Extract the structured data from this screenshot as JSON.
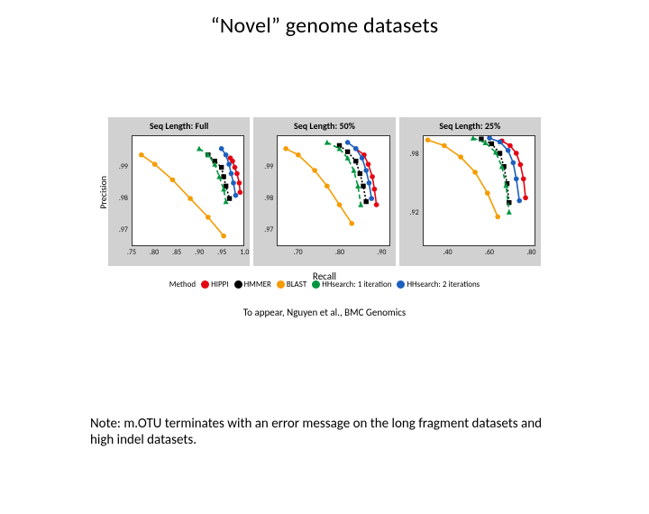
{
  "title": "“Novel” genome datasets",
  "axis": {
    "ylabel": "Precision",
    "xlabel": "Recall"
  },
  "citation": "To appear, Nguyen et al., BMC Genomics",
  "note": "Note: m.OTU terminates with an error message on the long fragment datasets and high indel datasets.",
  "legend_label": "Method",
  "methods": [
    {
      "name": "HIPPI",
      "color": "#e30613",
      "marker": "circle",
      "dash": "none"
    },
    {
      "name": "HMMER",
      "color": "#000000",
      "marker": "square",
      "dash": "2,2"
    },
    {
      "name": "BLAST",
      "color": "#f59c00",
      "marker": "circle",
      "dash": "none"
    },
    {
      "name": "HHsearch: 1 iteration",
      "color": "#009640",
      "marker": "triangle",
      "dash": "5,3"
    },
    {
      "name": "HHsearch: 2 iterations",
      "color": "#1d5fbf",
      "marker": "circle",
      "dash": "none"
    }
  ],
  "panels": [
    {
      "title": "Seq Length: Full",
      "xlim": [
        0.75,
        1.0
      ],
      "xticks": [
        0.75,
        0.8,
        0.85,
        0.9,
        0.95,
        1.0
      ],
      "xtick_labels": [
        ".75",
        ".80",
        ".85",
        ".90",
        ".95",
        "1.0"
      ],
      "ylim": [
        0.965,
        1.0
      ],
      "yticks": [
        0.97,
        0.98,
        0.99
      ],
      "ytick_labels": [
        ".97",
        ".98",
        ".99"
      ],
      "series": {
        "HIPPI": [
          [
            0.97,
            0.993
          ],
          [
            0.975,
            0.992
          ],
          [
            0.98,
            0.99
          ],
          [
            0.985,
            0.988
          ],
          [
            0.99,
            0.985
          ],
          [
            0.992,
            0.982
          ]
        ],
        "HMMER": [
          [
            0.92,
            0.994
          ],
          [
            0.935,
            0.992
          ],
          [
            0.95,
            0.99
          ],
          [
            0.955,
            0.987
          ],
          [
            0.96,
            0.984
          ],
          [
            0.968,
            0.98
          ]
        ],
        "BLAST": [
          [
            0.77,
            0.994
          ],
          [
            0.8,
            0.991
          ],
          [
            0.84,
            0.986
          ],
          [
            0.88,
            0.98
          ],
          [
            0.92,
            0.974
          ],
          [
            0.955,
            0.968
          ]
        ],
        "HHsearch: 1 iteration": [
          [
            0.9,
            0.996
          ],
          [
            0.92,
            0.994
          ],
          [
            0.935,
            0.991
          ],
          [
            0.945,
            0.987
          ],
          [
            0.955,
            0.983
          ],
          [
            0.96,
            0.979
          ]
        ],
        "HHsearch: 2 iterations": [
          [
            0.95,
            0.996
          ],
          [
            0.96,
            0.994
          ],
          [
            0.967,
            0.991
          ],
          [
            0.972,
            0.988
          ],
          [
            0.977,
            0.985
          ],
          [
            0.982,
            0.981
          ]
        ]
      }
    },
    {
      "title": "Seq Length: 50%",
      "xlim": [
        0.65,
        0.92
      ],
      "xticks": [
        0.7,
        0.8,
        0.9
      ],
      "xtick_labels": [
        ".70",
        ".80",
        ".90"
      ],
      "ylim": [
        0.965,
        1.0
      ],
      "yticks": [
        0.97,
        0.98,
        0.99
      ],
      "ytick_labels": [
        ".97",
        ".98",
        ".99"
      ],
      "series": {
        "HIPPI": [
          [
            0.84,
            0.996
          ],
          [
            0.86,
            0.994
          ],
          [
            0.87,
            0.991
          ],
          [
            0.88,
            0.987
          ],
          [
            0.885,
            0.983
          ],
          [
            0.89,
            0.978
          ]
        ],
        "HMMER": [
          [
            0.8,
            0.997
          ],
          [
            0.82,
            0.995
          ],
          [
            0.84,
            0.992
          ],
          [
            0.85,
            0.988
          ],
          [
            0.858,
            0.984
          ],
          [
            0.865,
            0.979
          ]
        ],
        "BLAST": [
          [
            0.67,
            0.996
          ],
          [
            0.7,
            0.994
          ],
          [
            0.74,
            0.989
          ],
          [
            0.77,
            0.984
          ],
          [
            0.8,
            0.978
          ],
          [
            0.83,
            0.972
          ]
        ],
        "HHsearch: 1 iteration": [
          [
            0.77,
            0.998
          ],
          [
            0.8,
            0.996
          ],
          [
            0.82,
            0.993
          ],
          [
            0.835,
            0.989
          ],
          [
            0.845,
            0.984
          ],
          [
            0.852,
            0.978
          ]
        ],
        "HHsearch: 2 iterations": [
          [
            0.82,
            0.998
          ],
          [
            0.84,
            0.996
          ],
          [
            0.855,
            0.993
          ],
          [
            0.865,
            0.989
          ],
          [
            0.872,
            0.985
          ],
          [
            0.878,
            0.98
          ]
        ]
      }
    },
    {
      "title": "Seq Length: 25%",
      "xlim": [
        0.28,
        0.82
      ],
      "xticks": [
        0.4,
        0.6,
        0.8
      ],
      "xtick_labels": [
        ".40",
        ".60",
        ".80"
      ],
      "ylim": [
        0.885,
        1.0
      ],
      "yticks": [
        0.92,
        0.98
      ],
      "ytick_labels": [
        ".92",
        ".98"
      ],
      "series": {
        "HIPPI": [
          [
            0.66,
            0.995
          ],
          [
            0.7,
            0.99
          ],
          [
            0.73,
            0.982
          ],
          [
            0.75,
            0.97
          ],
          [
            0.765,
            0.955
          ],
          [
            0.775,
            0.935
          ]
        ],
        "HMMER": [
          [
            0.56,
            0.997
          ],
          [
            0.61,
            0.992
          ],
          [
            0.65,
            0.982
          ],
          [
            0.67,
            0.968
          ],
          [
            0.685,
            0.95
          ],
          [
            0.695,
            0.93
          ]
        ],
        "BLAST": [
          [
            0.3,
            0.996
          ],
          [
            0.38,
            0.99
          ],
          [
            0.46,
            0.978
          ],
          [
            0.53,
            0.962
          ],
          [
            0.59,
            0.94
          ],
          [
            0.64,
            0.915
          ]
        ],
        "HHsearch: 1 iteration": [
          [
            0.52,
            0.998
          ],
          [
            0.58,
            0.993
          ],
          [
            0.63,
            0.983
          ],
          [
            0.66,
            0.968
          ],
          [
            0.68,
            0.948
          ],
          [
            0.695,
            0.92
          ]
        ],
        "HHsearch: 2 iterations": [
          [
            0.6,
            0.998
          ],
          [
            0.65,
            0.994
          ],
          [
            0.69,
            0.985
          ],
          [
            0.715,
            0.972
          ],
          [
            0.73,
            0.955
          ],
          [
            0.745,
            0.932
          ]
        ]
      }
    }
  ],
  "style": {
    "panel_bg": "#d1d1d1",
    "plot_bg": "#ffffff",
    "line_width": 1.6,
    "marker_radius": 2.3,
    "title_fontsize": 24,
    "panel_title_fontsize": 10
  }
}
